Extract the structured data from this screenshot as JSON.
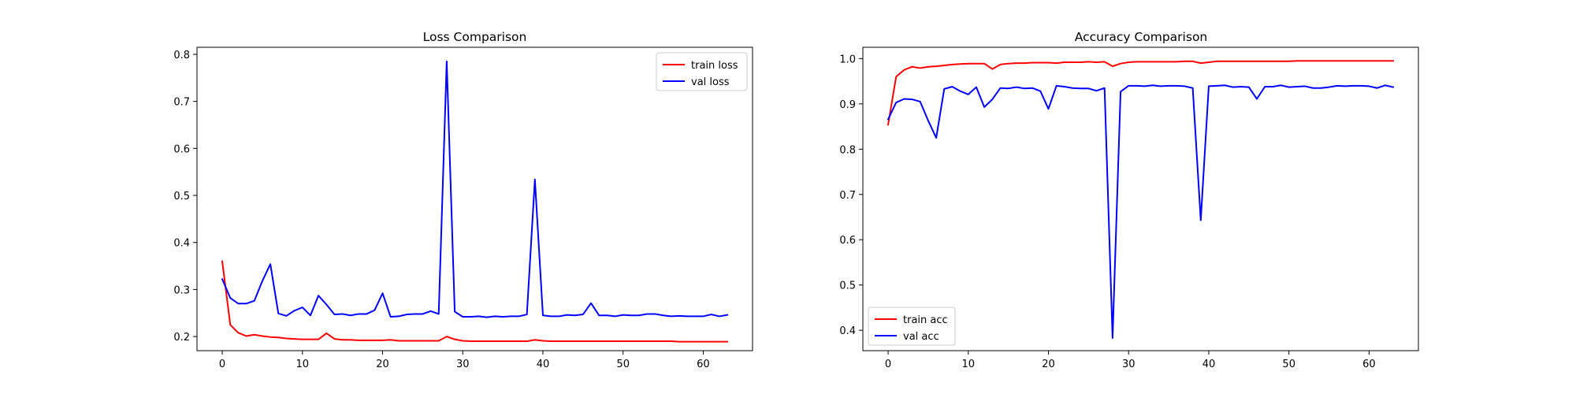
{
  "chart_data": [
    {
      "type": "line",
      "title": "Loss Comparison",
      "xlabel": "",
      "ylabel": "",
      "xlim": [
        -3.15,
        66.15
      ],
      "ylim": [
        0.17,
        0.815
      ],
      "xticks": [
        0,
        10,
        20,
        30,
        40,
        50,
        60
      ],
      "yticks": [
        0.2,
        0.3,
        0.4,
        0.5,
        0.6,
        0.7,
        0.8
      ],
      "ytick_decimals": 1,
      "grid": false,
      "legend_position": "top-right",
      "x": [
        0,
        1,
        2,
        3,
        4,
        5,
        6,
        7,
        8,
        9,
        10,
        11,
        12,
        13,
        14,
        15,
        16,
        17,
        18,
        19,
        20,
        21,
        22,
        23,
        24,
        25,
        26,
        27,
        28,
        29,
        30,
        31,
        32,
        33,
        34,
        35,
        36,
        37,
        38,
        39,
        40,
        41,
        42,
        43,
        44,
        45,
        46,
        47,
        48,
        49,
        50,
        51,
        52,
        53,
        54,
        55,
        56,
        57,
        58,
        59,
        60,
        61,
        62,
        63
      ],
      "series": [
        {
          "name": "train loss",
          "color": "#ff0000",
          "values": [
            0.36,
            0.225,
            0.208,
            0.201,
            0.204,
            0.201,
            0.199,
            0.198,
            0.196,
            0.195,
            0.194,
            0.194,
            0.194,
            0.207,
            0.195,
            0.193,
            0.193,
            0.192,
            0.192,
            0.192,
            0.192,
            0.193,
            0.191,
            0.191,
            0.191,
            0.191,
            0.191,
            0.191,
            0.2,
            0.194,
            0.191,
            0.19,
            0.19,
            0.19,
            0.19,
            0.19,
            0.19,
            0.19,
            0.19,
            0.193,
            0.191,
            0.19,
            0.19,
            0.19,
            0.19,
            0.19,
            0.19,
            0.19,
            0.19,
            0.19,
            0.19,
            0.19,
            0.19,
            0.19,
            0.19,
            0.19,
            0.19,
            0.189,
            0.189,
            0.189,
            0.189,
            0.189,
            0.189,
            0.189
          ]
        },
        {
          "name": "val loss",
          "color": "#0000ff",
          "values": [
            0.322,
            0.282,
            0.27,
            0.27,
            0.276,
            0.318,
            0.354,
            0.249,
            0.244,
            0.255,
            0.262,
            0.245,
            0.287,
            0.268,
            0.247,
            0.248,
            0.245,
            0.248,
            0.248,
            0.256,
            0.292,
            0.242,
            0.243,
            0.247,
            0.248,
            0.248,
            0.254,
            0.248,
            0.785,
            0.253,
            0.242,
            0.242,
            0.243,
            0.241,
            0.243,
            0.242,
            0.243,
            0.243,
            0.247,
            0.534,
            0.245,
            0.243,
            0.243,
            0.246,
            0.245,
            0.247,
            0.271,
            0.245,
            0.245,
            0.243,
            0.246,
            0.245,
            0.245,
            0.248,
            0.248,
            0.245,
            0.243,
            0.244,
            0.243,
            0.243,
            0.243,
            0.247,
            0.243,
            0.246
          ]
        }
      ]
    },
    {
      "type": "line",
      "title": "Accuracy Comparison",
      "xlabel": "",
      "ylabel": "",
      "xlim": [
        -3.15,
        66.15
      ],
      "ylim": [
        0.355,
        1.025
      ],
      "xticks": [
        0,
        10,
        20,
        30,
        40,
        50,
        60
      ],
      "yticks": [
        0.4,
        0.5,
        0.6,
        0.7,
        0.8,
        0.9,
        1.0
      ],
      "ytick_decimals": 1,
      "grid": false,
      "legend_position": "bottom-left",
      "x": [
        0,
        1,
        2,
        3,
        4,
        5,
        6,
        7,
        8,
        9,
        10,
        11,
        12,
        13,
        14,
        15,
        16,
        17,
        18,
        19,
        20,
        21,
        22,
        23,
        24,
        25,
        26,
        27,
        28,
        29,
        30,
        31,
        32,
        33,
        34,
        35,
        36,
        37,
        38,
        39,
        40,
        41,
        42,
        43,
        44,
        45,
        46,
        47,
        48,
        49,
        50,
        51,
        52,
        53,
        54,
        55,
        56,
        57,
        58,
        59,
        60,
        61,
        62,
        63
      ],
      "series": [
        {
          "name": "train acc",
          "color": "#ff0000",
          "values": [
            0.854,
            0.96,
            0.975,
            0.982,
            0.979,
            0.982,
            0.983,
            0.985,
            0.987,
            0.988,
            0.989,
            0.989,
            0.989,
            0.977,
            0.987,
            0.989,
            0.99,
            0.99,
            0.991,
            0.991,
            0.991,
            0.99,
            0.992,
            0.992,
            0.992,
            0.993,
            0.992,
            0.993,
            0.983,
            0.989,
            0.992,
            0.993,
            0.993,
            0.993,
            0.993,
            0.993,
            0.993,
            0.994,
            0.994,
            0.99,
            0.992,
            0.994,
            0.994,
            0.994,
            0.994,
            0.994,
            0.994,
            0.994,
            0.994,
            0.994,
            0.994,
            0.995,
            0.995,
            0.995,
            0.995,
            0.995,
            0.995,
            0.995,
            0.995,
            0.995,
            0.995,
            0.995,
            0.995,
            0.995
          ]
        },
        {
          "name": "val acc",
          "color": "#0000ff",
          "values": [
            0.866,
            0.903,
            0.911,
            0.91,
            0.905,
            0.863,
            0.825,
            0.933,
            0.938,
            0.928,
            0.921,
            0.937,
            0.893,
            0.91,
            0.935,
            0.934,
            0.937,
            0.934,
            0.935,
            0.928,
            0.889,
            0.94,
            0.938,
            0.935,
            0.934,
            0.934,
            0.929,
            0.935,
            0.383,
            0.927,
            0.94,
            0.94,
            0.939,
            0.941,
            0.939,
            0.94,
            0.94,
            0.939,
            0.935,
            0.643,
            0.939,
            0.94,
            0.941,
            0.937,
            0.938,
            0.937,
            0.911,
            0.938,
            0.938,
            0.941,
            0.937,
            0.938,
            0.939,
            0.935,
            0.935,
            0.937,
            0.94,
            0.939,
            0.94,
            0.94,
            0.939,
            0.935,
            0.941,
            0.937
          ]
        }
      ]
    }
  ]
}
